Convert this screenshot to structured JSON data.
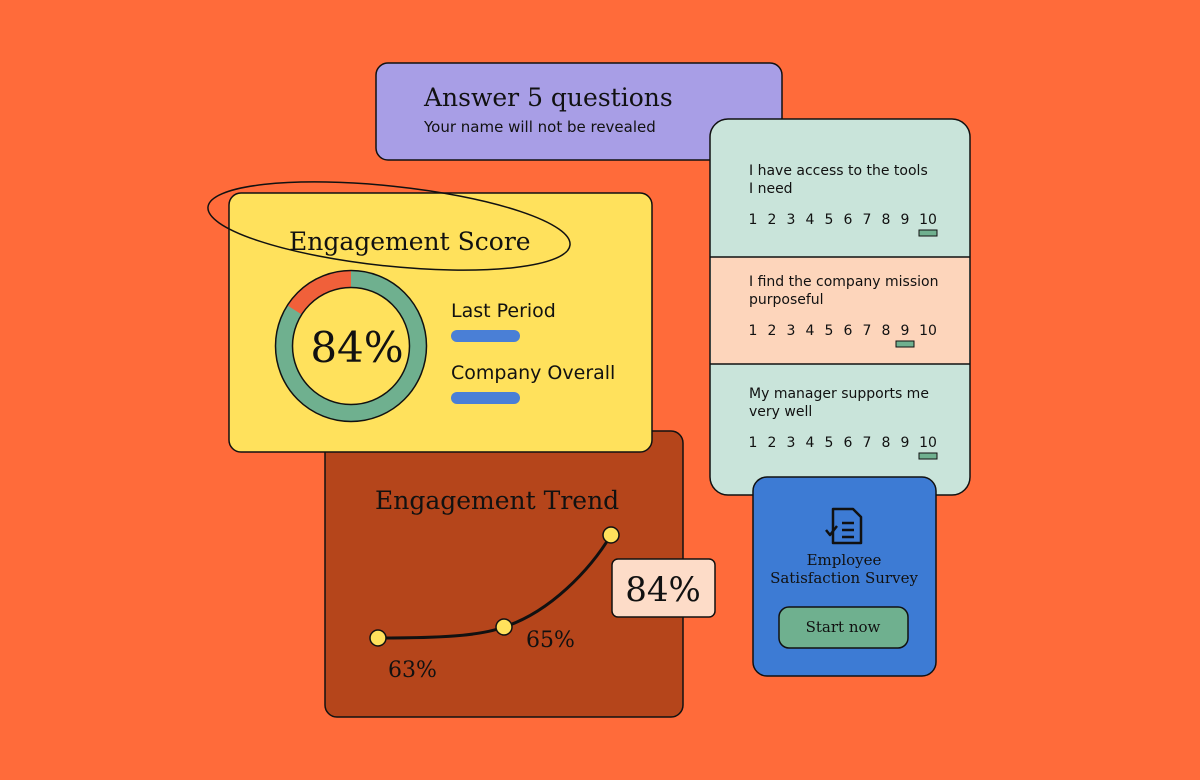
{
  "survey_header": {
    "title": "Answer 5 questions",
    "subtitle": "Your name will not be revealed"
  },
  "questions": [
    {
      "lines": [
        "I have access to the tools",
        "I need"
      ],
      "selected": 10
    },
    {
      "lines": [
        "I find the company mission",
        "purposeful"
      ],
      "selected": 9
    },
    {
      "lines": [
        "My manager supports me",
        "very well"
      ],
      "selected": 10
    }
  ],
  "scale": [
    1,
    2,
    3,
    4,
    5,
    6,
    7,
    8,
    9,
    10
  ],
  "engagement_score": {
    "title": "Engagement Score",
    "score": {
      "value": 84,
      "label": "84%"
    },
    "legend": [
      "Last Period",
      "Company Overall"
    ]
  },
  "engagement_trend": {
    "title": "Engagement Trend",
    "points": [
      "63%",
      "65%"
    ],
    "current": "84%"
  },
  "survey_card": {
    "title_lines": [
      "Employee",
      "Satisfaction Survey"
    ],
    "button": "Start now"
  }
}
